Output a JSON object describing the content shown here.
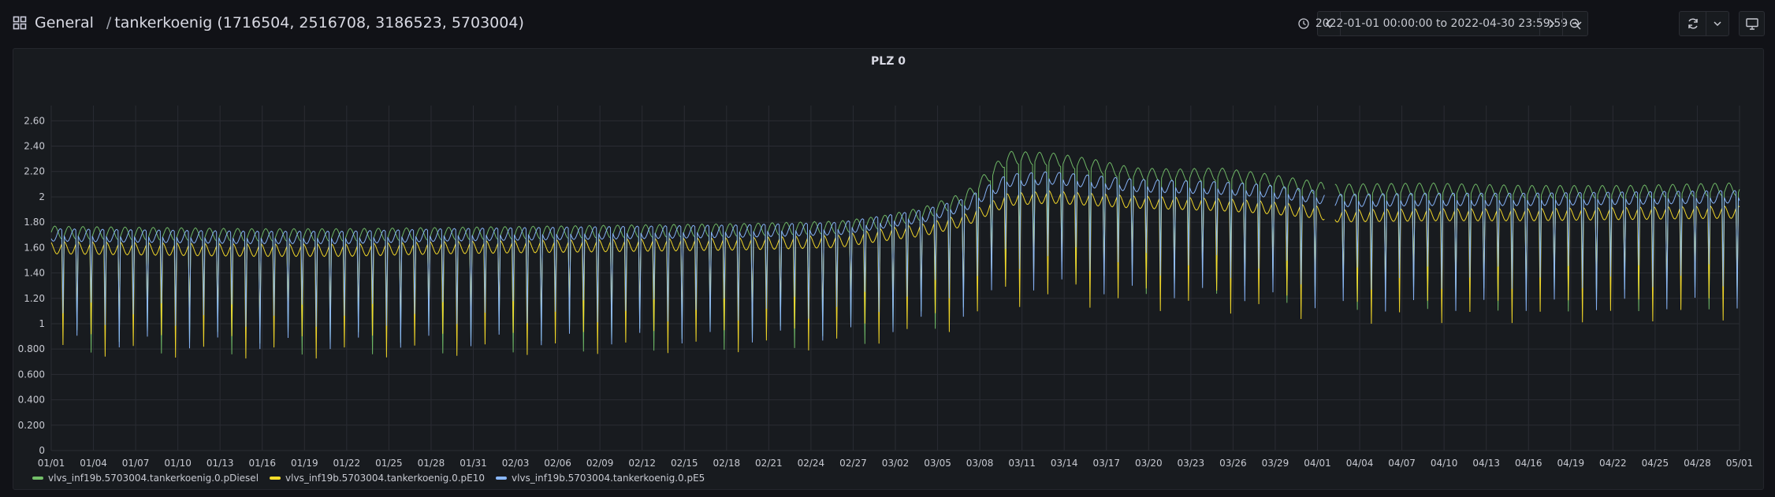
{
  "header": {
    "folder": "General",
    "dashboard": "tankerkoenig (1716504, 2516708, 3186523, 5703004)",
    "time_range": "2022-01-01 00:00:00 to 2022-04-30 23:59:59"
  },
  "icons": {
    "dashboards": "apps-grid-icon",
    "prev": "chevron-left-icon",
    "clock": "clock-icon",
    "time_dropdown": "chevron-down-icon",
    "next": "chevron-right-icon",
    "zoom_out": "zoom-out-icon",
    "refresh": "refresh-icon",
    "refresh_dropdown": "chevron-down-icon",
    "tv_mode": "monitor-icon"
  },
  "panel": {
    "title": "PLZ 0"
  },
  "chart_data": {
    "type": "line",
    "title": "PLZ 0",
    "xlabel": "",
    "ylabel": "",
    "x_range": [
      "2022-01-01",
      "2022-05-01"
    ],
    "x_ticks": [
      "01/01",
      "01/04",
      "01/07",
      "01/10",
      "01/13",
      "01/16",
      "01/19",
      "01/22",
      "01/25",
      "01/28",
      "01/31",
      "02/03",
      "02/06",
      "02/09",
      "02/12",
      "02/15",
      "02/18",
      "02/21",
      "02/24",
      "02/27",
      "03/02",
      "03/05",
      "03/08",
      "03/11",
      "03/14",
      "03/17",
      "03/20",
      "03/23",
      "03/26",
      "03/29",
      "04/01",
      "04/04",
      "04/07",
      "04/10",
      "04/13",
      "04/16",
      "04/19",
      "04/22",
      "04/25",
      "04/28",
      "05/01"
    ],
    "y_ticks": [
      "0",
      "0.200",
      "0.400",
      "0.600",
      "0.800",
      "1",
      "1.20",
      "1.40",
      "1.60",
      "1.80",
      "2",
      "2.20",
      "2.40",
      "2.60"
    ],
    "ylim": [
      0,
      2.72
    ],
    "grid": true,
    "legend_position": "bottom-left",
    "colors": {
      "pDiesel": "#73bf69",
      "pE10": "#fade2a",
      "pE5": "#8ab8ff"
    },
    "series": [
      {
        "name": "vlvs_inf19b.5703004.tankerkoenig.0.pDiesel",
        "color": "#73bf69",
        "x": [
          "2022-01-01",
          "2022-01-08",
          "2022-01-15",
          "2022-01-22",
          "2022-01-29",
          "2022-02-05",
          "2022-02-12",
          "2022-02-19",
          "2022-02-26",
          "2022-03-01",
          "2022-03-04",
          "2022-03-07",
          "2022-03-10",
          "2022-03-13",
          "2022-03-16",
          "2022-03-19",
          "2022-03-22",
          "2022-03-25",
          "2022-03-28",
          "2022-04-01",
          "2022-04-02",
          "2022-04-09",
          "2022-04-16",
          "2022-04-23",
          "2022-04-30"
        ],
        "values": [
          1.72,
          1.71,
          1.7,
          1.7,
          1.71,
          1.72,
          1.73,
          1.74,
          1.76,
          1.8,
          1.87,
          1.99,
          2.31,
          2.3,
          2.25,
          2.18,
          2.17,
          2.18,
          2.14,
          2.07,
          2.05,
          2.06,
          2.04,
          2.04,
          2.06
        ]
      },
      {
        "name": "vlvs_inf19b.5703004.tankerkoenig.0.pE10",
        "color": "#fade2a",
        "x": [
          "2022-01-01",
          "2022-01-08",
          "2022-01-15",
          "2022-01-22",
          "2022-01-29",
          "2022-02-05",
          "2022-02-12",
          "2022-02-19",
          "2022-02-26",
          "2022-03-01",
          "2022-03-04",
          "2022-03-07",
          "2022-03-10",
          "2022-03-13",
          "2022-03-16",
          "2022-03-19",
          "2022-03-22",
          "2022-03-25",
          "2022-03-28",
          "2022-04-01",
          "2022-04-02",
          "2022-04-09",
          "2022-04-16",
          "2022-04-23",
          "2022-04-30"
        ],
        "values": [
          1.6,
          1.59,
          1.58,
          1.58,
          1.6,
          1.61,
          1.62,
          1.63,
          1.65,
          1.7,
          1.74,
          1.82,
          1.98,
          2.0,
          1.98,
          1.96,
          1.95,
          1.94,
          1.92,
          1.88,
          1.85,
          1.86,
          1.86,
          1.87,
          1.88
        ]
      },
      {
        "name": "vlvs_inf19b.5703004.tankerkoenig.0.pE5",
        "color": "#8ab8ff",
        "x": [
          "2022-01-01",
          "2022-01-08",
          "2022-01-15",
          "2022-01-22",
          "2022-01-29",
          "2022-02-05",
          "2022-02-12",
          "2022-02-19",
          "2022-02-26",
          "2022-03-01",
          "2022-03-04",
          "2022-03-07",
          "2022-03-10",
          "2022-03-13",
          "2022-03-16",
          "2022-03-19",
          "2022-03-22",
          "2022-03-25",
          "2022-03-28",
          "2022-04-01",
          "2022-04-02",
          "2022-04-09",
          "2022-04-16",
          "2022-04-23",
          "2022-04-30"
        ],
        "values": [
          1.7,
          1.69,
          1.68,
          1.68,
          1.7,
          1.71,
          1.72,
          1.73,
          1.75,
          1.8,
          1.85,
          1.94,
          2.13,
          2.15,
          2.12,
          2.09,
          2.08,
          2.07,
          2.05,
          2.0,
          1.97,
          1.98,
          1.98,
          1.99,
          2.0
        ]
      }
    ],
    "gap": [
      "2022-04-01T12:00",
      "2022-04-02T06:00"
    ]
  }
}
